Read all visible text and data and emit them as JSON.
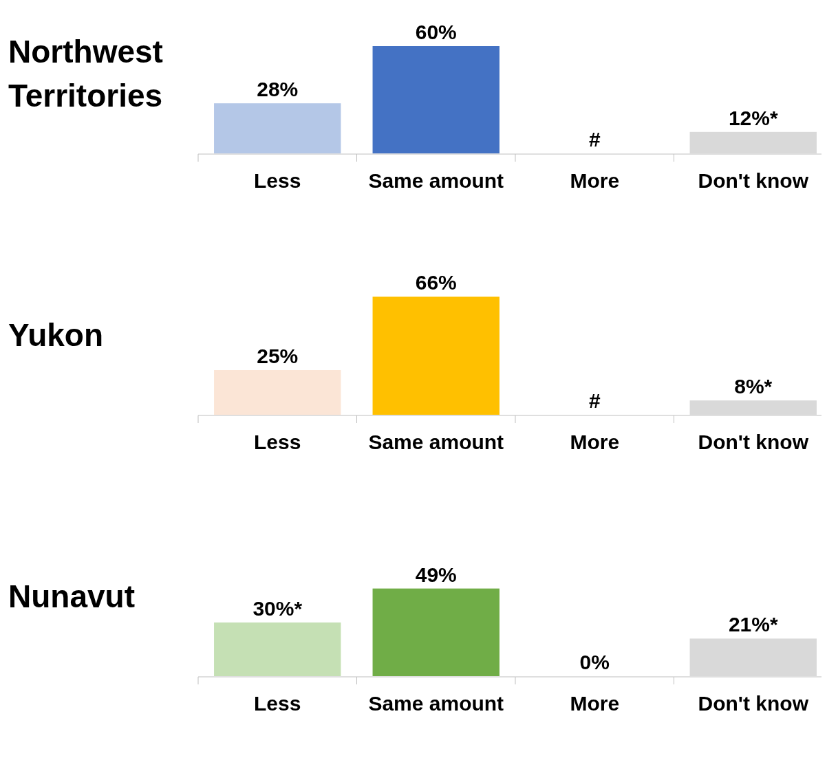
{
  "chart_data": [
    {
      "type": "bar",
      "title": "Northwest Territories",
      "categories": [
        "Less",
        "Same amount",
        "More",
        "Don't know"
      ],
      "values": [
        28,
        60,
        null,
        12
      ],
      "colors": [
        "#b4c7e7",
        "#4472c4",
        null,
        "#d9d9d9"
      ],
      "value_labels": [
        "28%",
        "60%",
        "#",
        "12%*"
      ]
    },
    {
      "type": "bar",
      "title": "Yukon",
      "categories": [
        "Less",
        "Same amount",
        "More",
        "Don't know"
      ],
      "values": [
        25,
        66,
        null,
        8
      ],
      "colors": [
        "#fbe5d6",
        "#ffc000",
        null,
        "#d9d9d9"
      ],
      "value_labels": [
        "25%",
        "66%",
        "#",
        "8%*"
      ]
    },
    {
      "type": "bar",
      "title": "Nunavut",
      "categories": [
        "Less",
        "Same amount",
        "More",
        "Don't know"
      ],
      "values": [
        30,
        49,
        0,
        21
      ],
      "colors": [
        "#c5e0b4",
        "#70ad47",
        "#d9d9d9",
        "#d9d9d9"
      ],
      "value_labels": [
        "30%*",
        "49%",
        "0%",
        "21%*"
      ]
    }
  ]
}
